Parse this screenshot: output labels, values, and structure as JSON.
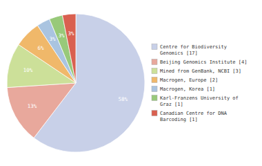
{
  "chart_data": {
    "type": "pie",
    "categories": [
      "Centre for Biodiversity\nGenomics [17]",
      "Beijing Genomics Institute [4]",
      "Mined from GenBank, NCBI [3]",
      "Macrogen, Europe [2]",
      "Macrogen, Korea [1]",
      "Karl-Franzens University of\nGraz [1]",
      "Canadian Centre for DNA\nBarcoding [1]"
    ],
    "values": [
      58,
      13,
      10,
      6,
      3,
      3,
      3
    ],
    "value_labels": [
      "58%",
      "13%",
      "10%",
      "6%",
      "3%",
      "3%",
      "3%"
    ],
    "colors": [
      "#c8d0e8",
      "#e8a89c",
      "#cce099",
      "#f0b86a",
      "#aac4e0",
      "#98c97a",
      "#d96050"
    ],
    "data_labels": true,
    "legend": "right"
  }
}
